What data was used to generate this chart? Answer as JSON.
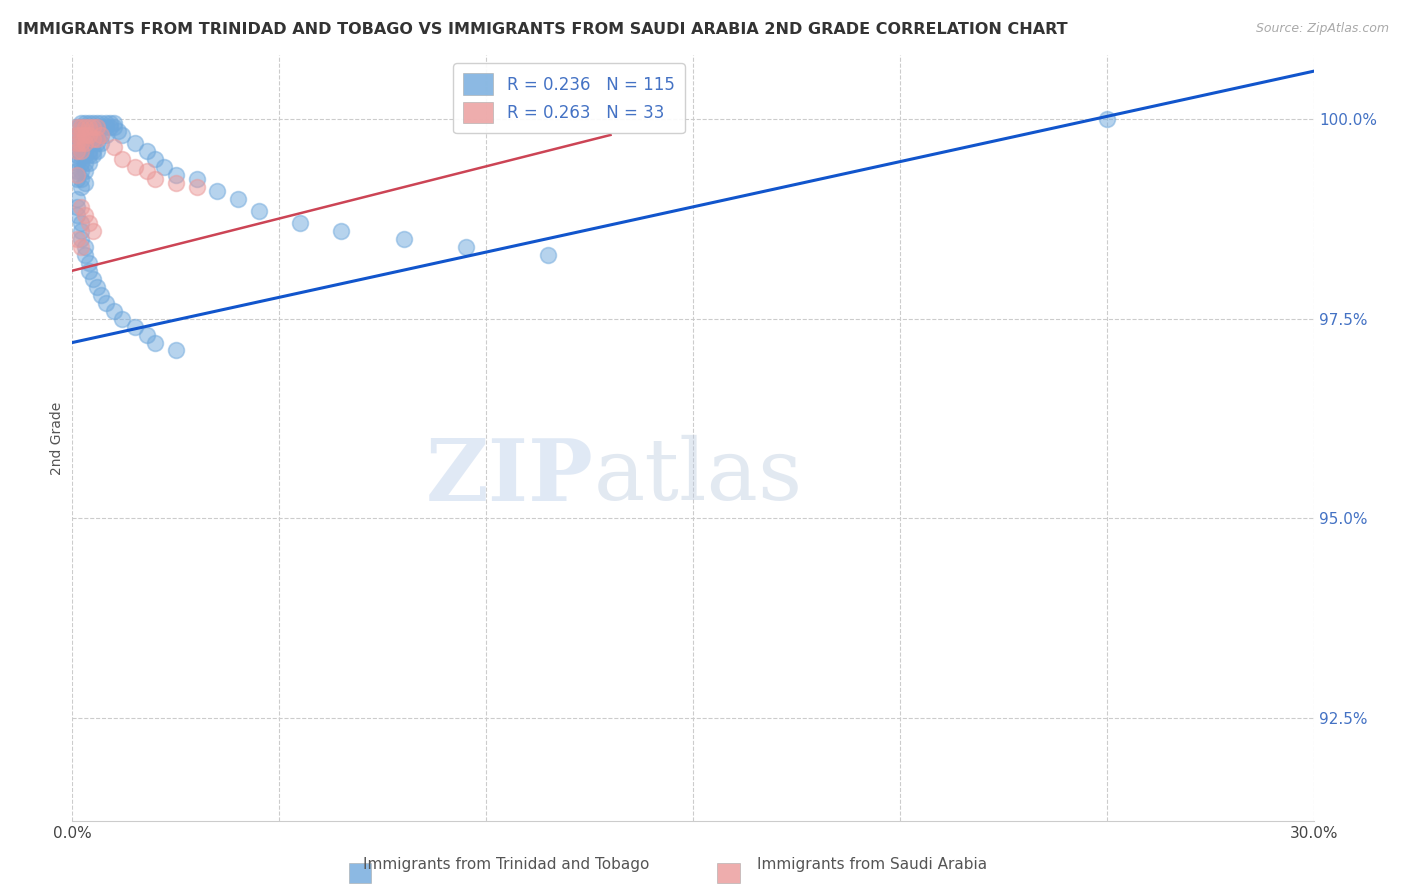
{
  "title": "IMMIGRANTS FROM TRINIDAD AND TOBAGO VS IMMIGRANTS FROM SAUDI ARABIA 2ND GRADE CORRELATION CHART",
  "source": "Source: ZipAtlas.com",
  "xlabel_blue": "Immigrants from Trinidad and Tobago",
  "xlabel_pink": "Immigrants from Saudi Arabia",
  "ylabel": "2nd Grade",
  "xmin": 0.0,
  "xmax": 0.3,
  "ymin": 0.912,
  "ymax": 1.008,
  "yticks": [
    0.925,
    0.95,
    0.975,
    1.0
  ],
  "ytick_labels": [
    "92.5%",
    "95.0%",
    "97.5%",
    "100.0%"
  ],
  "xticks": [
    0.0,
    0.05,
    0.1,
    0.15,
    0.2,
    0.25,
    0.3
  ],
  "xtick_labels": [
    "0.0%",
    "",
    "",
    "",
    "",
    "",
    "30.0%"
  ],
  "R_blue": 0.236,
  "N_blue": 115,
  "R_pink": 0.263,
  "N_pink": 33,
  "blue_color": "#6fa8dc",
  "pink_color": "#ea9999",
  "blue_line_color": "#1155cc",
  "pink_line_color": "#cc4455",
  "watermark_zip": "ZIP",
  "watermark_atlas": "atlas",
  "blue_line_x0": 0.0,
  "blue_line_y0": 0.972,
  "blue_line_x1": 0.3,
  "blue_line_y1": 1.006,
  "pink_line_x0": 0.0,
  "pink_line_y0": 0.981,
  "pink_line_x1": 0.13,
  "pink_line_y1": 0.998,
  "blue_scatter_x": [
    0.001,
    0.001,
    0.001,
    0.001,
    0.001,
    0.001,
    0.001,
    0.001,
    0.002,
    0.002,
    0.002,
    0.002,
    0.002,
    0.002,
    0.002,
    0.002,
    0.002,
    0.002,
    0.003,
    0.003,
    0.003,
    0.003,
    0.003,
    0.003,
    0.003,
    0.003,
    0.003,
    0.004,
    0.004,
    0.004,
    0.004,
    0.004,
    0.004,
    0.004,
    0.005,
    0.005,
    0.005,
    0.005,
    0.005,
    0.005,
    0.006,
    0.006,
    0.006,
    0.006,
    0.006,
    0.007,
    0.007,
    0.007,
    0.007,
    0.008,
    0.008,
    0.008,
    0.009,
    0.009,
    0.01,
    0.01,
    0.011,
    0.012,
    0.015,
    0.018,
    0.02,
    0.022,
    0.025,
    0.03,
    0.035,
    0.04,
    0.045,
    0.055,
    0.065,
    0.08,
    0.095,
    0.115,
    0.25,
    0.001,
    0.001,
    0.001,
    0.002,
    0.002,
    0.002,
    0.003,
    0.003,
    0.004,
    0.004,
    0.005,
    0.006,
    0.007,
    0.008,
    0.01,
    0.012,
    0.015,
    0.018,
    0.02,
    0.025
  ],
  "blue_scatter_y": [
    0.999,
    0.998,
    0.997,
    0.9965,
    0.9955,
    0.9945,
    0.9935,
    0.9925,
    0.9995,
    0.999,
    0.998,
    0.997,
    0.996,
    0.9955,
    0.9945,
    0.9935,
    0.9925,
    0.9915,
    0.9995,
    0.999,
    0.998,
    0.997,
    0.996,
    0.9955,
    0.9945,
    0.9935,
    0.992,
    0.9995,
    0.999,
    0.998,
    0.997,
    0.996,
    0.9955,
    0.9945,
    0.9995,
    0.999,
    0.998,
    0.997,
    0.996,
    0.9955,
    0.9995,
    0.999,
    0.998,
    0.997,
    0.996,
    0.9995,
    0.999,
    0.998,
    0.997,
    0.9995,
    0.999,
    0.998,
    0.9995,
    0.999,
    0.9995,
    0.999,
    0.9985,
    0.998,
    0.997,
    0.996,
    0.995,
    0.994,
    0.993,
    0.9925,
    0.991,
    0.99,
    0.9885,
    0.987,
    0.986,
    0.985,
    0.984,
    0.983,
    1.0,
    0.99,
    0.989,
    0.988,
    0.987,
    0.986,
    0.985,
    0.984,
    0.983,
    0.982,
    0.981,
    0.98,
    0.979,
    0.978,
    0.977,
    0.976,
    0.975,
    0.974,
    0.973,
    0.972,
    0.971
  ],
  "pink_scatter_x": [
    0.001,
    0.001,
    0.001,
    0.001,
    0.001,
    0.002,
    0.002,
    0.002,
    0.002,
    0.003,
    0.003,
    0.003,
    0.004,
    0.004,
    0.005,
    0.005,
    0.006,
    0.006,
    0.007,
    0.01,
    0.012,
    0.015,
    0.018,
    0.02,
    0.025,
    0.03,
    0.002,
    0.003,
    0.004,
    0.005,
    0.001,
    0.002
  ],
  "pink_scatter_y": [
    0.999,
    0.998,
    0.997,
    0.996,
    0.993,
    0.999,
    0.998,
    0.997,
    0.996,
    0.999,
    0.998,
    0.997,
    0.999,
    0.998,
    0.999,
    0.9975,
    0.999,
    0.9975,
    0.998,
    0.9965,
    0.995,
    0.994,
    0.9935,
    0.9925,
    0.992,
    0.9915,
    0.989,
    0.988,
    0.987,
    0.986,
    0.985,
    0.984
  ]
}
